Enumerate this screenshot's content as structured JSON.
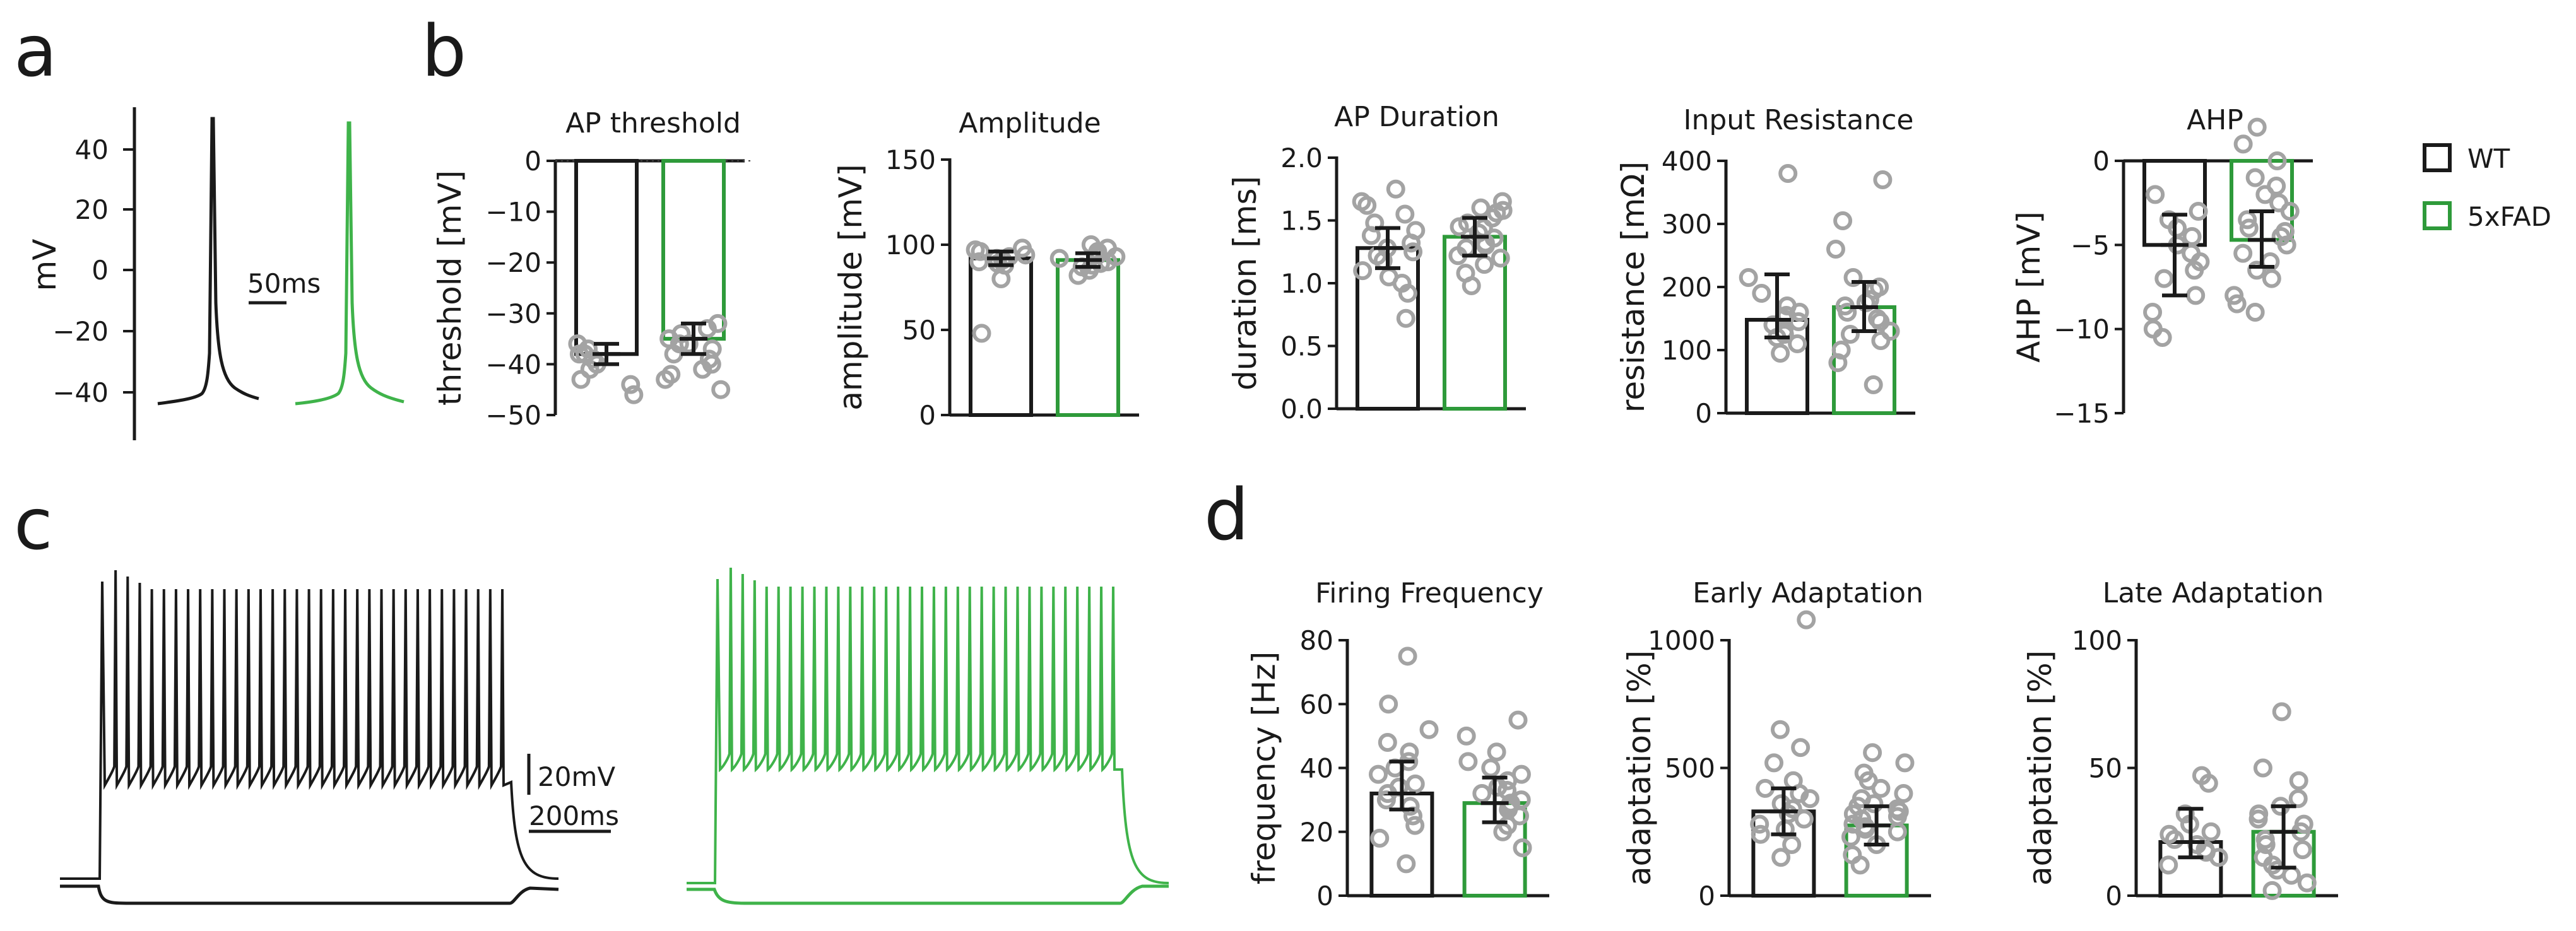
{
  "panel_labels": [
    "a",
    "b",
    "c",
    "d"
  ],
  "colors": {
    "wt": "#1a1a1a",
    "fad": "#2e9a3a",
    "fad_trace": "#3fb34a",
    "dot": "#a3a3a3"
  },
  "legend": {
    "wt": "WT",
    "fad": "5xFAD"
  },
  "panel_a": {
    "ylabel": "mV",
    "ticks": [
      "40",
      "20",
      "0",
      "−20",
      "−40"
    ],
    "scale_label": "50ms"
  },
  "panel_c": {
    "scale_v": "20mV",
    "scale_t": "200ms"
  },
  "chart_data": [
    {
      "id": "ap-threshold",
      "type": "bar",
      "title": "AP threshold",
      "ylabel": "threshold [mV]",
      "ylim": [
        -50,
        0
      ],
      "yticks": [
        0,
        -10,
        -20,
        -30,
        -40,
        -50
      ],
      "ytick_labels": [
        "0",
        "−10",
        "−20",
        "−30",
        "−40",
        "−50"
      ],
      "zero_line": true,
      "categories": [
        "WT",
        "5xFAD"
      ],
      "values": [
        -38,
        -35
      ],
      "err_low": [
        -40,
        -38
      ],
      "err_high": [
        -36,
        -32
      ],
      "points": [
        [
          -36,
          -37,
          -38,
          -39,
          -41,
          -43,
          -46,
          -38,
          -40,
          -44
        ],
        [
          -32,
          -33,
          -35,
          -36,
          -37,
          -38,
          -40,
          -42,
          -45,
          -34,
          -39,
          -43,
          -36,
          -41
        ]
      ]
    },
    {
      "id": "amplitude",
      "type": "bar",
      "title": "Amplitude",
      "ylabel": "amplitude [mV]",
      "ylim": [
        0,
        150
      ],
      "yticks": [
        0,
        50,
        100,
        150
      ],
      "ytick_labels": [
        "0",
        "50",
        "100",
        "150"
      ],
      "categories": [
        "WT",
        "5xFAD"
      ],
      "values": [
        92,
        91
      ],
      "err_low": [
        88,
        87
      ],
      "err_high": [
        96,
        95
      ],
      "points": [
        [
          48,
          80,
          88,
          90,
          92,
          94,
          96,
          97,
          98,
          91,
          89,
          93
        ],
        [
          82,
          85,
          88,
          90,
          92,
          94,
          96,
          98,
          100,
          87,
          89,
          93
        ]
      ]
    },
    {
      "id": "ap-duration",
      "type": "bar",
      "title": "AP Duration",
      "ylabel": "duration [ms]",
      "ylim": [
        0,
        2
      ],
      "yticks": [
        0,
        0.5,
        1.0,
        1.5,
        2.0
      ],
      "ytick_labels": [
        "0.0",
        "0.5",
        "1.0",
        "1.5",
        "2.0"
      ],
      "categories": [
        "WT",
        "5xFAD"
      ],
      "values": [
        1.28,
        1.37
      ],
      "err_low": [
        1.12,
        1.22
      ],
      "err_high": [
        1.44,
        1.52
      ],
      "points": [
        [
          0.72,
          0.92,
          1.0,
          1.1,
          1.18,
          1.22,
          1.28,
          1.32,
          1.38,
          1.42,
          1.48,
          1.55,
          1.62,
          1.75,
          1.65,
          1.05,
          1.25
        ],
        [
          0.98,
          1.08,
          1.15,
          1.22,
          1.28,
          1.32,
          1.36,
          1.4,
          1.44,
          1.48,
          1.52,
          1.56,
          1.6,
          1.65,
          1.3,
          1.2,
          1.45,
          1.58
        ]
      ]
    },
    {
      "id": "input-resistance",
      "type": "bar",
      "title": "Input Resistance",
      "ylabel": "resistance [mΩ]",
      "ylim": [
        0,
        400
      ],
      "yticks": [
        0,
        100,
        200,
        300,
        400
      ],
      "ytick_labels": [
        "0",
        "100",
        "200",
        "300",
        "400"
      ],
      "categories": [
        "WT",
        "5xFAD"
      ],
      "values": [
        148,
        168
      ],
      "err_low": [
        120,
        130
      ],
      "err_high": [
        220,
        208
      ],
      "points": [
        [
          95,
          110,
          120,
          130,
          140,
          150,
          160,
          170,
          190,
          215,
          380,
          125,
          145,
          155
        ],
        [
          45,
          80,
          100,
          115,
          130,
          145,
          160,
          170,
          180,
          195,
          215,
          260,
          305,
          370,
          150,
          175,
          125,
          200
        ]
      ]
    },
    {
      "id": "ahp",
      "type": "bar",
      "title": "AHP",
      "ylabel": "AHP [mV]",
      "ylim": [
        -15,
        0
      ],
      "yticks": [
        0,
        -5,
        -10,
        -15
      ],
      "ytick_labels": [
        "0",
        "−5",
        "−10",
        "−15"
      ],
      "zero_line": false,
      "categories": [
        "WT",
        "5xFAD"
      ],
      "values": [
        -5,
        -4.7
      ],
      "err_low": [
        -8,
        -6.3
      ],
      "err_high": [
        -3.2,
        -3
      ],
      "points": [
        [
          -2,
          -3,
          -4,
          -4.5,
          -5,
          -6,
          -6.5,
          -7,
          -8,
          -9,
          -10,
          -10.5,
          -5.5,
          -3.5
        ],
        [
          2,
          1,
          0,
          -1,
          -2,
          -3,
          -3.5,
          -4,
          -4.5,
          -5,
          -5.5,
          -6,
          -7,
          -8,
          -8.5,
          -9,
          -2.5,
          -6.5,
          -4.2,
          -1.5
        ]
      ]
    },
    {
      "id": "firing-frequency",
      "type": "bar",
      "title": "Firing Frequency",
      "ylabel": "frequency [Hz]",
      "ylim": [
        0,
        80
      ],
      "yticks": [
        0,
        20,
        40,
        60,
        80
      ],
      "ytick_labels": [
        "0",
        "20",
        "40",
        "60",
        "80"
      ],
      "categories": [
        "WT",
        "5xFAD"
      ],
      "values": [
        32,
        29
      ],
      "err_low": [
        27,
        23
      ],
      "err_high": [
        42,
        37
      ],
      "points": [
        [
          10,
          18,
          22,
          25,
          28,
          30,
          32,
          35,
          38,
          42,
          45,
          48,
          52,
          60,
          75,
          34,
          40
        ],
        [
          15,
          20,
          22,
          25,
          27,
          29,
          30,
          32,
          34,
          36,
          38,
          40,
          45,
          50,
          55,
          28,
          33,
          42
        ]
      ]
    },
    {
      "id": "early-adaptation",
      "type": "bar",
      "title": "Early Adaptation",
      "ylabel": "adaptation [%]",
      "ylim": [
        0,
        1000
      ],
      "yticks": [
        0,
        500,
        1000
      ],
      "ytick_labels": [
        "0",
        "500",
        "1000"
      ],
      "categories": [
        "WT",
        "5xFAD"
      ],
      "values": [
        330,
        275
      ],
      "err_low": [
        240,
        200
      ],
      "err_high": [
        420,
        350
      ],
      "points": [
        [
          150,
          200,
          240,
          280,
          320,
          360,
          400,
          450,
          520,
          580,
          650,
          1080,
          300,
          380,
          260,
          420,
          340
        ],
        [
          120,
          160,
          200,
          230,
          260,
          280,
          300,
          320,
          340,
          360,
          380,
          400,
          420,
          450,
          480,
          520,
          560,
          250,
          310,
          350,
          270,
          330
        ]
      ]
    },
    {
      "id": "late-adaptation",
      "type": "bar",
      "title": "Late Adaptation",
      "ylabel": "adaptation [%]",
      "ylim": [
        0,
        100
      ],
      "yticks": [
        0,
        50,
        100
      ],
      "ytick_labels": [
        "0",
        "50",
        "100"
      ],
      "categories": [
        "WT",
        "5xFAD"
      ],
      "values": [
        21,
        25
      ],
      "err_low": [
        15,
        11
      ],
      "err_high": [
        34,
        35
      ],
      "points": [
        [
          12,
          15,
          18,
          20,
          22,
          25,
          28,
          32,
          44,
          47,
          17,
          24
        ],
        [
          2,
          5,
          8,
          12,
          15,
          18,
          22,
          25,
          28,
          32,
          38,
          45,
          50,
          72,
          20,
          30,
          10,
          35
        ]
      ]
    }
  ]
}
